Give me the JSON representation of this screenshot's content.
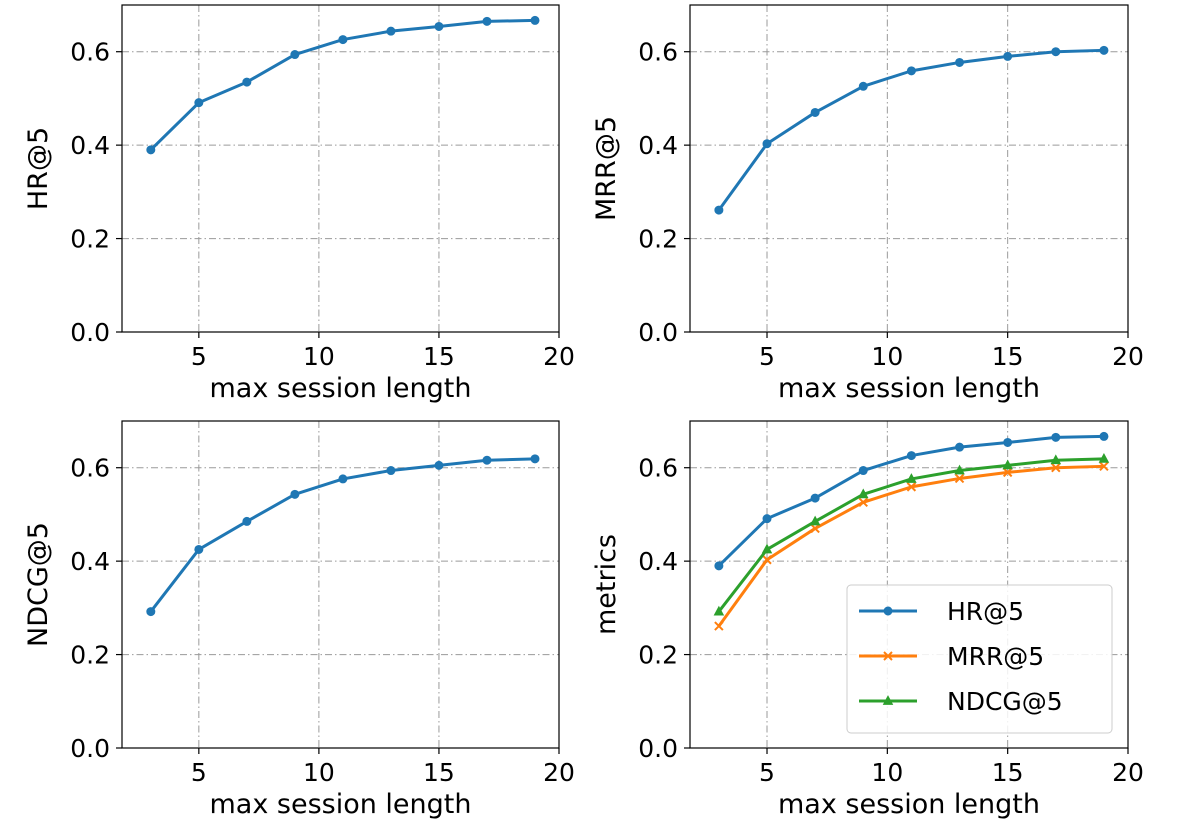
{
  "chart_data": [
    {
      "type": "line",
      "x": [
        3,
        5,
        7,
        9,
        11,
        13,
        15,
        17,
        19
      ],
      "series": [
        {
          "name": "HR@5",
          "values": [
            0.39,
            0.491,
            0.535,
            0.594,
            0.626,
            0.644,
            0.654,
            0.665,
            0.667
          ],
          "color": "#1f77b4",
          "marker": "circle"
        }
      ],
      "xlabel": "max session length",
      "ylabel": "HR@5",
      "xlim": [
        1.8,
        20
      ],
      "ylim": [
        0,
        0.7
      ],
      "xticks": [
        5,
        10,
        15,
        20
      ],
      "yticks": [
        0.0,
        0.2,
        0.4,
        0.6
      ],
      "xtick_labels": [
        "5",
        "10",
        "15",
        "20"
      ],
      "ytick_labels": [
        "0.0",
        "0.2",
        "0.4",
        "0.6"
      ],
      "grid": true
    },
    {
      "type": "line",
      "x": [
        3,
        5,
        7,
        9,
        11,
        13,
        15,
        17,
        19
      ],
      "series": [
        {
          "name": "MRR@5",
          "values": [
            0.261,
            0.403,
            0.47,
            0.526,
            0.559,
            0.577,
            0.59,
            0.6,
            0.603
          ],
          "color": "#1f77b4",
          "marker": "circle"
        }
      ],
      "xlabel": "max session length",
      "ylabel": "MRR@5",
      "xlim": [
        1.8,
        20
      ],
      "ylim": [
        0,
        0.7
      ],
      "xticks": [
        5,
        10,
        15,
        20
      ],
      "yticks": [
        0.0,
        0.2,
        0.4,
        0.6
      ],
      "xtick_labels": [
        "5",
        "10",
        "15",
        "20"
      ],
      "ytick_labels": [
        "0.0",
        "0.2",
        "0.4",
        "0.6"
      ],
      "grid": true
    },
    {
      "type": "line",
      "x": [
        3,
        5,
        7,
        9,
        11,
        13,
        15,
        17,
        19
      ],
      "series": [
        {
          "name": "NDCG@5",
          "values": [
            0.292,
            0.425,
            0.485,
            0.543,
            0.576,
            0.594,
            0.605,
            0.616,
            0.619
          ],
          "color": "#1f77b4",
          "marker": "circle"
        }
      ],
      "xlabel": "max session length",
      "ylabel": "NDCG@5",
      "xlim": [
        1.8,
        20
      ],
      "ylim": [
        0,
        0.7
      ],
      "xticks": [
        5,
        10,
        15,
        20
      ],
      "yticks": [
        0.0,
        0.2,
        0.4,
        0.6
      ],
      "xtick_labels": [
        "5",
        "10",
        "15",
        "20"
      ],
      "ytick_labels": [
        "0.0",
        "0.2",
        "0.4",
        "0.6"
      ],
      "grid": true
    },
    {
      "type": "line",
      "x": [
        3,
        5,
        7,
        9,
        11,
        13,
        15,
        17,
        19
      ],
      "series": [
        {
          "name": "HR@5",
          "values": [
            0.39,
            0.491,
            0.535,
            0.594,
            0.626,
            0.644,
            0.654,
            0.665,
            0.667
          ],
          "color": "#1f77b4",
          "marker": "circle"
        },
        {
          "name": "MRR@5",
          "values": [
            0.261,
            0.403,
            0.47,
            0.526,
            0.559,
            0.577,
            0.59,
            0.6,
            0.603
          ],
          "color": "#ff7f0e",
          "marker": "x"
        },
        {
          "name": "NDCG@5",
          "values": [
            0.292,
            0.425,
            0.485,
            0.543,
            0.576,
            0.594,
            0.605,
            0.616,
            0.619
          ],
          "color": "#2ca02c",
          "marker": "triangle"
        }
      ],
      "xlabel": "max session length",
      "ylabel": "metrics",
      "xlim": [
        1.8,
        20
      ],
      "ylim": [
        0,
        0.7
      ],
      "xticks": [
        5,
        10,
        15,
        20
      ],
      "yticks": [
        0.0,
        0.2,
        0.4,
        0.6
      ],
      "xtick_labels": [
        "5",
        "10",
        "15",
        "20"
      ],
      "ytick_labels": [
        "0.0",
        "0.2",
        "0.4",
        "0.6"
      ],
      "grid": true,
      "legend": "lower-right"
    }
  ]
}
